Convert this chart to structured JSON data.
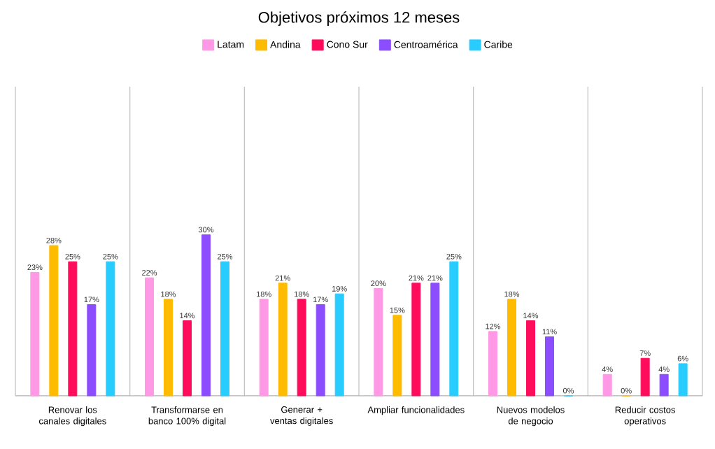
{
  "chart_data": {
    "type": "bar",
    "title": "Objetivos próximos 12 meses",
    "categories": [
      "Renovar los canales digitales",
      "Transformarse en banco 100% digital",
      "Generar + ventas digitales",
      "Ampliar funcionalidades",
      "Nuevos modelos de negocio",
      "Reducir costos operativos"
    ],
    "series": [
      {
        "name": "Latam",
        "color": "#ff99e6",
        "values": [
          23,
          22,
          18,
          20,
          12,
          4
        ],
        "value_labels": [
          "23%",
          "22%",
          "18%",
          "20%",
          "12%",
          "4%"
        ]
      },
      {
        "name": "Andina",
        "color": "#ffbb00",
        "values": [
          28,
          18,
          21,
          15,
          18,
          0
        ],
        "value_labels": [
          "28%",
          "18%",
          "21%",
          "15%",
          "18%",
          "0%"
        ]
      },
      {
        "name": "Cono Sur",
        "color": "#ff0d5c",
        "values": [
          25,
          14,
          18,
          21,
          14,
          7
        ],
        "value_labels": [
          "25%",
          "14%",
          "18%",
          "21%",
          "14%",
          "7%"
        ]
      },
      {
        "name": "Centroamérica",
        "color": "#8c4dff",
        "values": [
          17,
          30,
          17,
          21,
          11,
          4
        ],
        "value_labels": [
          "17%",
          "30%",
          "17%",
          "21%",
          "11%",
          "4%"
        ]
      },
      {
        "name": "Caribe",
        "color": "#29ccff",
        "values": [
          25,
          25,
          19,
          25,
          0,
          6
        ],
        "value_labels": [
          "25%",
          "25%",
          "19%",
          "25%",
          "0%",
          "6%"
        ]
      }
    ],
    "grid": "x",
    "legend": "top"
  }
}
